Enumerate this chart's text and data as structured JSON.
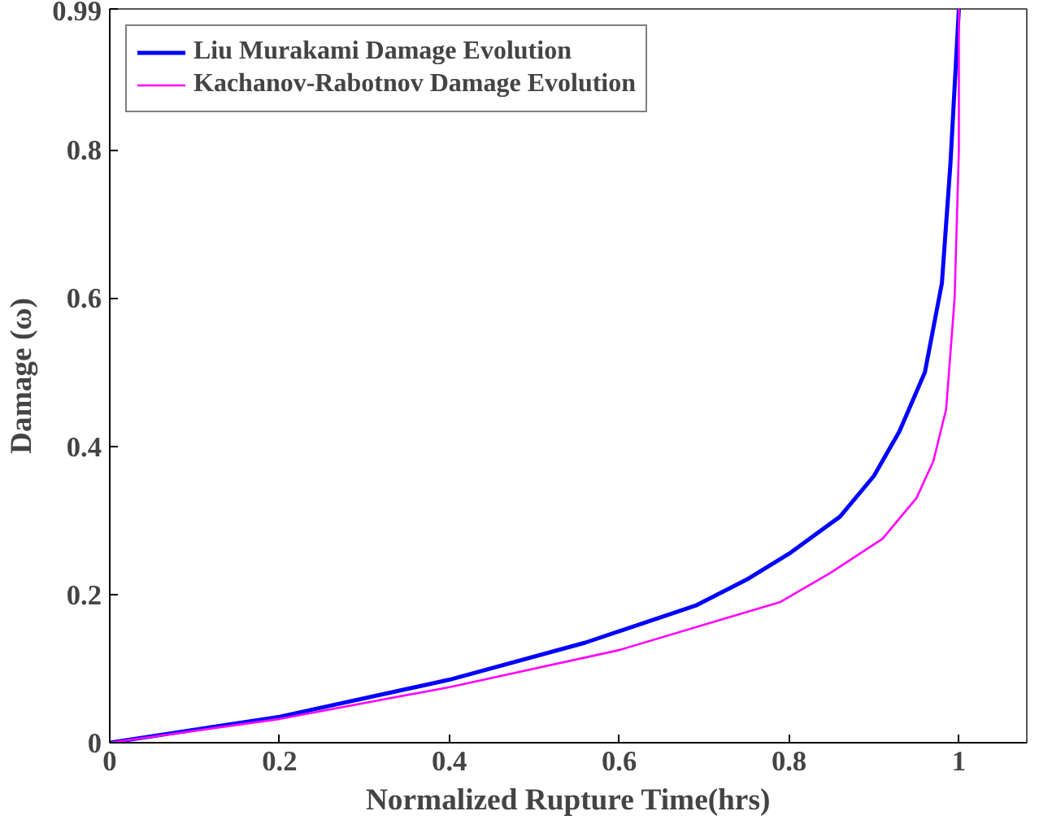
{
  "chart_data": {
    "type": "line",
    "xlabel": "Normalized Rupture Time(hrs)",
    "ylabel": "Damage (ω)",
    "xlim": [
      0,
      1.08
    ],
    "ylim": [
      0,
      0.99
    ],
    "xticks": [
      0,
      0.2,
      0.4,
      0.6,
      0.8,
      1
    ],
    "yticks": [
      0,
      0.2,
      0.4,
      0.6,
      0.8,
      0.99
    ],
    "grid": false,
    "legend": "top left",
    "line_style": "solid",
    "series": [
      {
        "name": "Liu Murakami Damage Evolution",
        "color": "#0000ff",
        "x": [
          0,
          0.2,
          0.4,
          0.56,
          0.69,
          0.75,
          0.8,
          0.86,
          0.9,
          0.93,
          0.96,
          0.98,
          0.99,
          1.0
        ],
        "values": [
          0,
          0.035,
          0.085,
          0.135,
          0.185,
          0.22,
          0.255,
          0.305,
          0.36,
          0.42,
          0.5,
          0.62,
          0.78,
          0.99
        ]
      },
      {
        "name": "Kachanov-Rabotnov Damage Evolution",
        "color": "#ff00ff",
        "x": [
          0,
          0.2,
          0.4,
          0.6,
          0.79,
          0.85,
          0.91,
          0.95,
          0.97,
          0.985,
          0.995,
          1.0,
          1.0
        ],
        "values": [
          0,
          0.032,
          0.075,
          0.125,
          0.19,
          0.23,
          0.275,
          0.33,
          0.38,
          0.45,
          0.6,
          0.8,
          0.99
        ]
      }
    ]
  }
}
